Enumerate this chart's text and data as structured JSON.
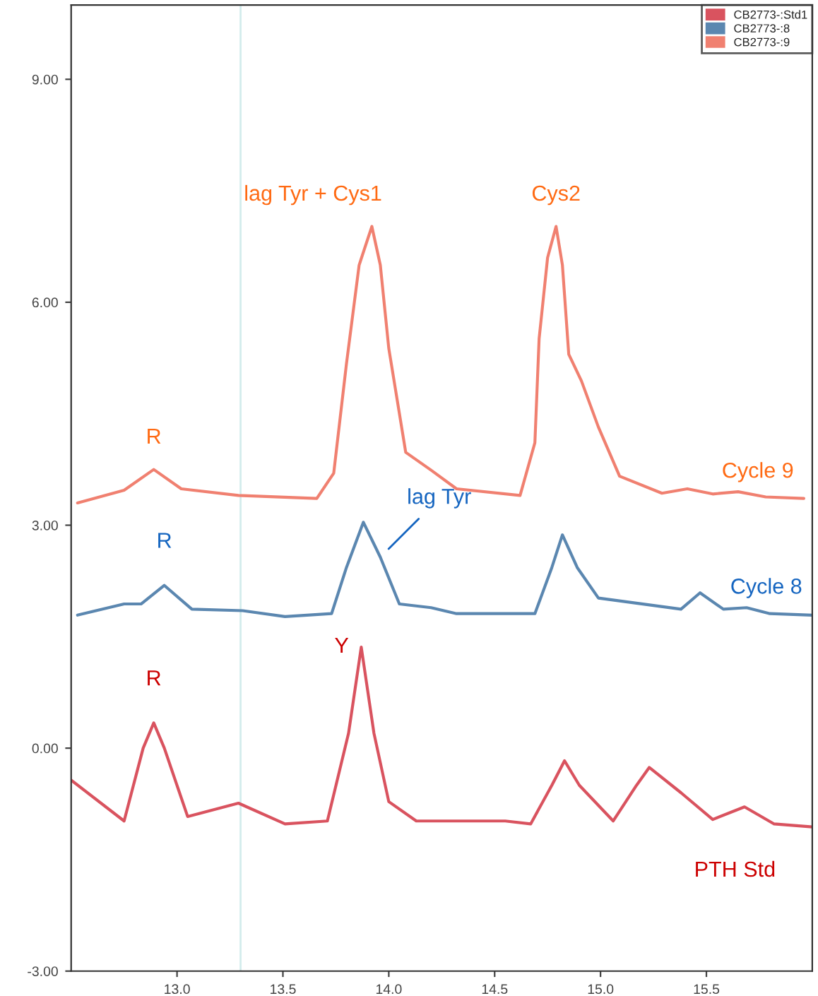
{
  "chart_data": {
    "type": "line",
    "xlim": [
      12.5,
      16.0
    ],
    "ylim": [
      -3,
      10
    ],
    "xticks": [
      {
        "value": 13.0,
        "label": "13.0"
      },
      {
        "value": 13.5,
        "label": "13.5"
      },
      {
        "value": 14.0,
        "label": "14.0"
      },
      {
        "value": 14.5,
        "label": "14.5"
      },
      {
        "value": 15.0,
        "label": "15.0"
      },
      {
        "value": 15.5,
        "label": "15.5"
      }
    ],
    "yticks": [
      {
        "value": -3,
        "label": "-3.00"
      },
      {
        "value": 0,
        "label": "0.00"
      },
      {
        "value": 3,
        "label": "3.00"
      },
      {
        "value": 6,
        "label": "6.00"
      },
      {
        "value": 9,
        "label": "9.00"
      }
    ],
    "legend": "top right",
    "ref_lines": [
      {
        "axis": "x",
        "value": 13.3,
        "color": "#d3ecec"
      }
    ],
    "series": [
      {
        "name": "CB2773-:Std1",
        "color": "#d9535f",
        "x": [
          12.5,
          12.75,
          12.84,
          12.89,
          12.94,
          13.05,
          13.29,
          13.51,
          13.71,
          13.81,
          13.87,
          13.93,
          14.0,
          14.13,
          14.55,
          14.67,
          14.77,
          14.83,
          14.9,
          15.06,
          15.17,
          15.23,
          15.38,
          15.53,
          15.68,
          15.82,
          16.0
        ],
        "values": [
          -0.43,
          -0.98,
          0.0,
          0.34,
          0.0,
          -0.92,
          -0.74,
          -1.02,
          -0.98,
          0.2,
          1.36,
          0.2,
          -0.72,
          -0.98,
          -0.98,
          -1.02,
          -0.5,
          -0.17,
          -0.5,
          -0.98,
          -0.5,
          -0.26,
          -0.6,
          -0.96,
          -0.79,
          -1.02,
          -1.06
        ]
      },
      {
        "name": "CB2773-:8",
        "color": "#5b87b0",
        "x": [
          12.53,
          12.75,
          12.83,
          12.94,
          13.07,
          13.31,
          13.51,
          13.73,
          13.8,
          13.88,
          13.96,
          14.05,
          14.2,
          14.32,
          14.69,
          14.77,
          14.82,
          14.89,
          14.99,
          15.38,
          15.47,
          15.58,
          15.69,
          15.8,
          16.0
        ],
        "values": [
          1.79,
          1.94,
          1.94,
          2.19,
          1.87,
          1.85,
          1.77,
          1.81,
          2.43,
          3.04,
          2.57,
          1.94,
          1.89,
          1.81,
          1.81,
          2.43,
          2.87,
          2.43,
          2.02,
          1.87,
          2.09,
          1.87,
          1.89,
          1.81,
          1.79
        ]
      },
      {
        "name": "CB2773-:9",
        "color": "#f08070",
        "x": [
          12.53,
          12.75,
          12.89,
          13.02,
          13.29,
          13.66,
          13.74,
          13.8,
          13.86,
          13.92,
          13.96,
          14.0,
          14.08,
          14.2,
          14.32,
          14.62,
          14.69,
          14.71,
          14.75,
          14.79,
          14.82,
          14.85,
          14.91,
          14.99,
          15.09,
          15.29,
          15.41,
          15.53,
          15.65,
          15.78,
          15.96
        ],
        "values": [
          3.3,
          3.47,
          3.75,
          3.49,
          3.4,
          3.36,
          3.7,
          5.17,
          6.5,
          7.02,
          6.5,
          5.38,
          3.98,
          3.74,
          3.49,
          3.4,
          4.11,
          5.51,
          6.6,
          7.02,
          6.5,
          5.3,
          4.94,
          4.32,
          3.66,
          3.43,
          3.49,
          3.42,
          3.45,
          3.38,
          3.36
        ]
      }
    ],
    "annotations": [
      {
        "text": "R",
        "x": 12.89,
        "y": 3.75
      },
      {
        "text": "lag Tyr + Cys1",
        "x": 13.92,
        "y": 7.02
      },
      {
        "text": "Cys2",
        "x": 14.79,
        "y": 7.02
      },
      {
        "text": "Cycle 9",
        "x": 15.65,
        "y": 3.45
      },
      {
        "text": "R",
        "x": 12.94,
        "y": 2.19
      },
      {
        "text": "lag Tyr",
        "x": 13.96,
        "y": 2.57
      },
      {
        "text": "Cycle 8",
        "x": 15.69,
        "y": 1.89
      },
      {
        "text": "R",
        "x": 12.89,
        "y": 0.34
      },
      {
        "text": "Y",
        "x": 13.87,
        "y": 1.36
      },
      {
        "text": "PTH Std",
        "x": 15.82,
        "y": -1.02
      }
    ]
  }
}
